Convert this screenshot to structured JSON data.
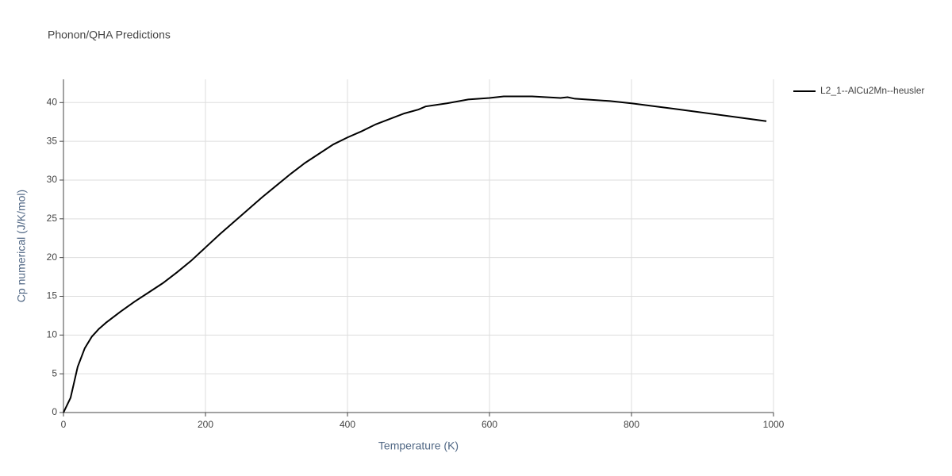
{
  "chart_data": {
    "type": "line",
    "title": "Phonon/QHA Predictions",
    "x_label": "Temperature (K)",
    "y_label": "Cp numerical (J/K/mol)",
    "xlim": [
      0,
      1000
    ],
    "ylim": [
      0,
      43
    ],
    "xticks": [
      0,
      200,
      400,
      600,
      800,
      1000
    ],
    "yticks": [
      0,
      5,
      10,
      15,
      20,
      25,
      30,
      35,
      40
    ],
    "grid": true,
    "legend": "right",
    "x": [
      0,
      10,
      20,
      30,
      40,
      50,
      60,
      80,
      100,
      120,
      140,
      160,
      180,
      200,
      220,
      240,
      260,
      280,
      300,
      320,
      340,
      360,
      380,
      400,
      420,
      440,
      460,
      480,
      500,
      510,
      540,
      570,
      600,
      620,
      660,
      700,
      710,
      720,
      770,
      800,
      860,
      990
    ],
    "series": [
      {
        "name": "L2_1--AlCu2Mn--heusler",
        "color": "#000000",
        "values": [
          0,
          1.9,
          5.9,
          8.3,
          9.8,
          10.8,
          11.6,
          13.0,
          14.3,
          15.5,
          16.7,
          18.1,
          19.6,
          21.3,
          23.0,
          24.6,
          26.2,
          27.8,
          29.3,
          30.8,
          32.2,
          33.4,
          34.6,
          35.5,
          36.3,
          37.2,
          37.9,
          38.6,
          39.1,
          39.5,
          39.9,
          40.4,
          40.6,
          40.8,
          40.8,
          40.6,
          40.7,
          40.5,
          40.2,
          39.9,
          39.2,
          37.6
        ]
      }
    ]
  }
}
